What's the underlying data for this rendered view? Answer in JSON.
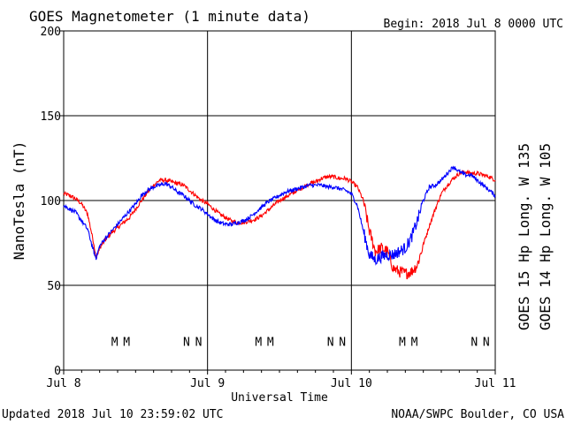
{
  "header": {
    "title": "GOES Magnetometer (1 minute data)",
    "begin": "Begin:  2018 Jul 8 0000 UTC"
  },
  "footer": {
    "updated": "Updated 2018 Jul 10 23:59:02 UTC",
    "credit": "NOAA/SWPC Boulder, CO USA"
  },
  "chart_data": {
    "type": "line",
    "title": "GOES Magnetometer (1 minute data)",
    "xlabel": "Universal Time",
    "ylabel": "NanoTesla (nT)",
    "ylim": [
      0,
      200
    ],
    "xlim_hours": [
      0,
      72
    ],
    "x_ticks": [
      {
        "hour": 0,
        "label": "Jul 8"
      },
      {
        "hour": 24,
        "label": "Jul 9"
      },
      {
        "hour": 48,
        "label": "Jul 10"
      },
      {
        "hour": 72,
        "label": "Jul 11"
      }
    ],
    "y_ticks": [
      0,
      50,
      100,
      150,
      200
    ],
    "grid": true,
    "legend_placement": "right, vertical",
    "series": [
      {
        "name": "GOES 15 Hp  Long. W 135",
        "color": "#ff0000",
        "points": [
          [
            0,
            104
          ],
          [
            1,
            103
          ],
          [
            2,
            101
          ],
          [
            3,
            98
          ],
          [
            4,
            92
          ],
          [
            5,
            75
          ],
          [
            5.4,
            66
          ],
          [
            6,
            72
          ],
          [
            7,
            77
          ],
          [
            8,
            81
          ],
          [
            9,
            84
          ],
          [
            10,
            87
          ],
          [
            11,
            90
          ],
          [
            12,
            95
          ],
          [
            13,
            100
          ],
          [
            14,
            105
          ],
          [
            15,
            109
          ],
          [
            16,
            112
          ],
          [
            17,
            112
          ],
          [
            18,
            111
          ],
          [
            19,
            110
          ],
          [
            20,
            109
          ],
          [
            21,
            106
          ],
          [
            22,
            103
          ],
          [
            23,
            100
          ],
          [
            24,
            98
          ],
          [
            25,
            95
          ],
          [
            26,
            92
          ],
          [
            27,
            90
          ],
          [
            28,
            88
          ],
          [
            29,
            87
          ],
          [
            30,
            87
          ],
          [
            31,
            88
          ],
          [
            32,
            89
          ],
          [
            33,
            91
          ],
          [
            34,
            94
          ],
          [
            35,
            97
          ],
          [
            36,
            100
          ],
          [
            37,
            102
          ],
          [
            38,
            104
          ],
          [
            39,
            106
          ],
          [
            40,
            108
          ],
          [
            41,
            110
          ],
          [
            42,
            111
          ],
          [
            43,
            113
          ],
          [
            44,
            114
          ],
          [
            45,
            114
          ],
          [
            46,
            113
          ],
          [
            47,
            113
          ],
          [
            48,
            111
          ],
          [
            49,
            108
          ],
          [
            50,
            100
          ],
          [
            51,
            82
          ],
          [
            52,
            70
          ],
          [
            53,
            72
          ],
          [
            54,
            70
          ],
          [
            55,
            60
          ],
          [
            56,
            58
          ],
          [
            57,
            57
          ],
          [
            58,
            58
          ],
          [
            59,
            62
          ],
          [
            60,
            74
          ],
          [
            61,
            85
          ],
          [
            62,
            95
          ],
          [
            63,
            104
          ],
          [
            64,
            109
          ],
          [
            65,
            113
          ],
          [
            66,
            116
          ],
          [
            67,
            117
          ],
          [
            68,
            116
          ],
          [
            69,
            116
          ],
          [
            70,
            115
          ],
          [
            71,
            114
          ],
          [
            72,
            112
          ]
        ]
      },
      {
        "name": "GOES 14 Hp  Long. W 105",
        "color": "#0000ff",
        "points": [
          [
            0,
            97
          ],
          [
            1,
            95
          ],
          [
            2,
            93
          ],
          [
            3,
            88
          ],
          [
            4,
            83
          ],
          [
            5,
            70
          ],
          [
            5.4,
            66
          ],
          [
            6,
            73
          ],
          [
            7,
            78
          ],
          [
            8,
            82
          ],
          [
            9,
            86
          ],
          [
            10,
            90
          ],
          [
            11,
            94
          ],
          [
            12,
            98
          ],
          [
            13,
            103
          ],
          [
            14,
            106
          ],
          [
            15,
            108
          ],
          [
            16,
            109
          ],
          [
            17,
            110
          ],
          [
            18,
            108
          ],
          [
            19,
            105
          ],
          [
            20,
            103
          ],
          [
            21,
            100
          ],
          [
            22,
            97
          ],
          [
            23,
            95
          ],
          [
            24,
            92
          ],
          [
            25,
            89
          ],
          [
            26,
            87
          ],
          [
            27,
            86
          ],
          [
            28,
            86
          ],
          [
            29,
            87
          ],
          [
            30,
            88
          ],
          [
            31,
            90
          ],
          [
            32,
            93
          ],
          [
            33,
            96
          ],
          [
            34,
            99
          ],
          [
            35,
            101
          ],
          [
            36,
            103
          ],
          [
            37,
            105
          ],
          [
            38,
            106
          ],
          [
            39,
            107
          ],
          [
            40,
            108
          ],
          [
            41,
            109
          ],
          [
            42,
            109
          ],
          [
            43,
            109
          ],
          [
            44,
            108
          ],
          [
            45,
            108
          ],
          [
            46,
            107
          ],
          [
            47,
            106
          ],
          [
            48,
            104
          ],
          [
            49,
            97
          ],
          [
            50,
            82
          ],
          [
            51,
            68
          ],
          [
            52,
            65
          ],
          [
            53,
            67
          ],
          [
            54,
            68
          ],
          [
            55,
            68
          ],
          [
            56,
            70
          ],
          [
            57,
            72
          ],
          [
            58,
            78
          ],
          [
            59,
            88
          ],
          [
            60,
            100
          ],
          [
            61,
            108
          ],
          [
            62,
            109
          ],
          [
            63,
            112
          ],
          [
            64,
            116
          ],
          [
            65,
            120
          ],
          [
            66,
            117
          ],
          [
            67,
            115
          ],
          [
            68,
            115
          ],
          [
            69,
            112
          ],
          [
            70,
            109
          ],
          [
            71,
            106
          ],
          [
            72,
            103
          ]
        ]
      }
    ],
    "annotations": [
      {
        "hour": 8.5,
        "text": "M",
        "color": "#0000ff"
      },
      {
        "hour": 10.5,
        "text": "M",
        "color": "#ff0000"
      },
      {
        "hour": 20.5,
        "text": "N",
        "color": "#0000ff"
      },
      {
        "hour": 22.5,
        "text": "N",
        "color": "#ff0000"
      },
      {
        "hour": 32.5,
        "text": "M",
        "color": "#0000ff"
      },
      {
        "hour": 34.5,
        "text": "M",
        "color": "#ff0000"
      },
      {
        "hour": 44.5,
        "text": "N",
        "color": "#0000ff"
      },
      {
        "hour": 46.5,
        "text": "N",
        "color": "#ff0000"
      },
      {
        "hour": 56.5,
        "text": "M",
        "color": "#0000ff"
      },
      {
        "hour": 58.5,
        "text": "M",
        "color": "#ff0000"
      },
      {
        "hour": 68.5,
        "text": "N",
        "color": "#0000ff"
      },
      {
        "hour": 70.5,
        "text": "N",
        "color": "#ff0000"
      }
    ],
    "annotation_level": 17
  }
}
